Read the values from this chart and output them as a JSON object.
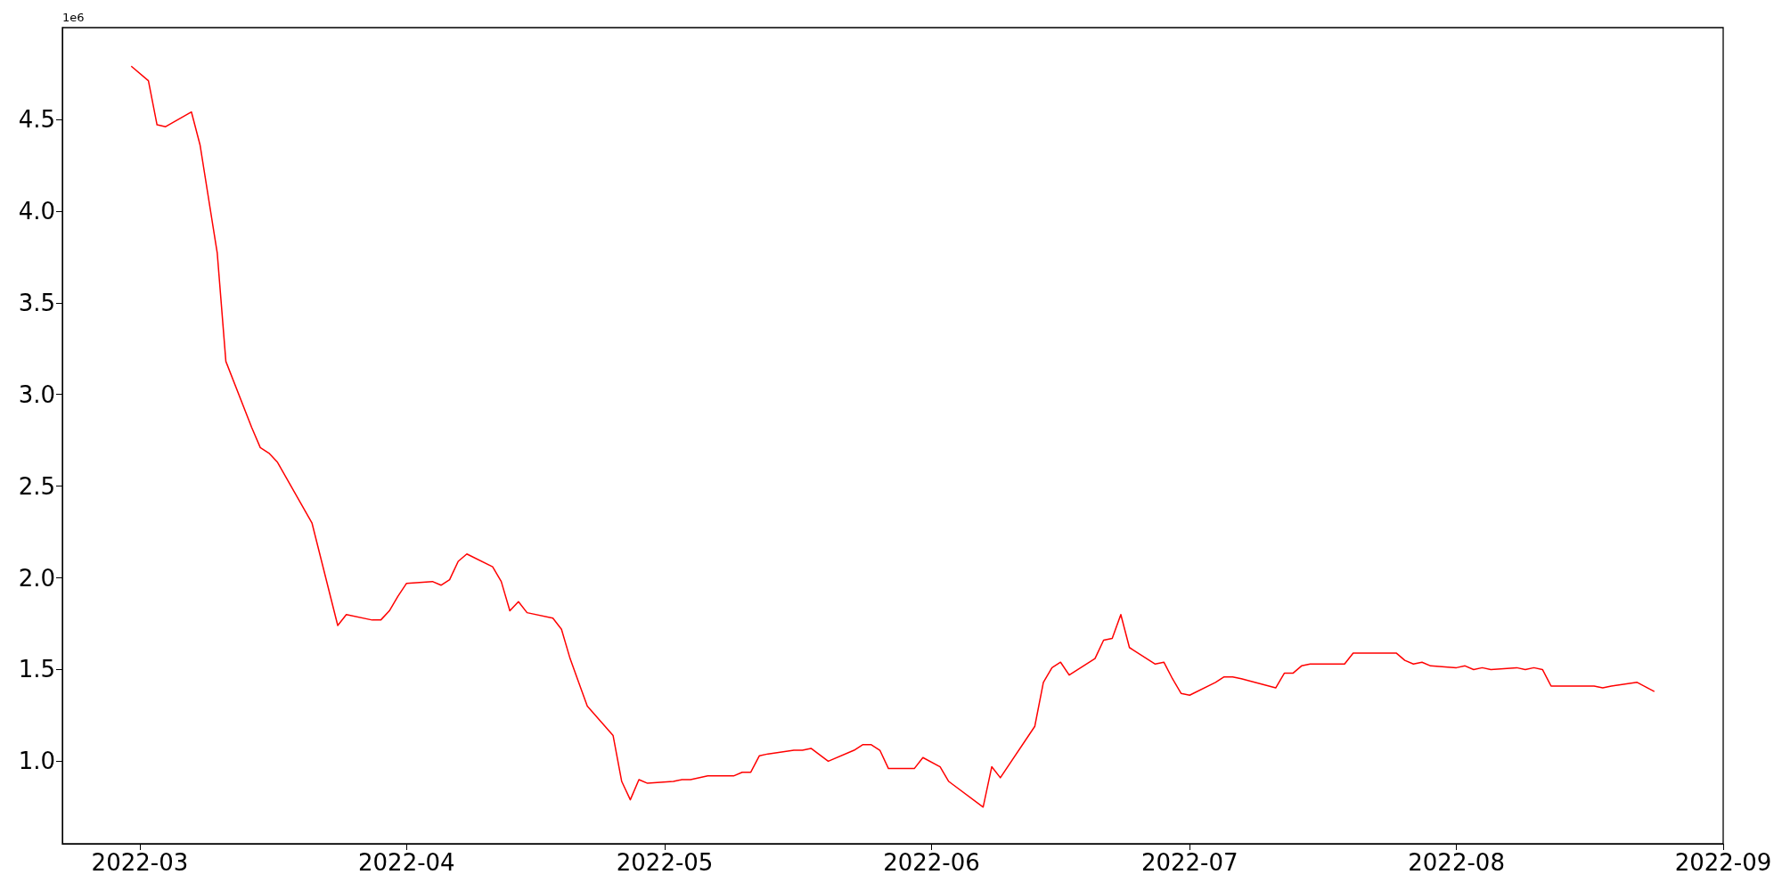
{
  "chart_data": {
    "type": "line",
    "annotations": [
      "1e6"
    ],
    "xlim": [
      "2022-02-20",
      "2022-09-01"
    ],
    "ylim": [
      0.55,
      5.0
    ],
    "xticks": [
      "2022-03",
      "2022-04",
      "2022-05",
      "2022-06",
      "2022-07",
      "2022-08",
      "2022-09"
    ],
    "yticks": [
      {
        "value": 1,
        "label": "1.0"
      },
      1.5,
      {
        "value": 2,
        "label": "2.0"
      },
      2.5,
      {
        "value": 3,
        "label": "3.0"
      },
      3.5,
      {
        "value": 4,
        "label": "4.0"
      },
      4.5
    ],
    "grid": false,
    "marker": "none",
    "line_style": "solid",
    "series": [
      {
        "color": "#ff0000",
        "x": [
          "2022-02-28",
          "2022-03-02",
          "2022-03-03",
          "2022-03-04",
          "2022-03-07",
          "2022-03-08",
          "2022-03-10",
          "2022-03-11",
          "2022-03-14",
          "2022-03-15",
          "2022-03-16",
          "2022-03-17",
          "2022-03-21",
          "2022-03-24",
          "2022-03-25",
          "2022-03-28",
          "2022-03-29",
          "2022-03-30",
          "2022-03-31",
          "2022-04-01",
          "2022-04-04",
          "2022-04-05",
          "2022-04-06",
          "2022-04-07",
          "2022-04-08",
          "2022-04-11",
          "2022-04-12",
          "2022-04-13",
          "2022-04-14",
          "2022-04-15",
          "2022-04-18",
          "2022-04-19",
          "2022-04-20",
          "2022-04-22",
          "2022-04-25",
          "2022-04-26",
          "2022-04-27",
          "2022-04-28",
          "2022-04-29",
          "2022-05-02",
          "2022-05-03",
          "2022-05-04",
          "2022-05-06",
          "2022-05-09",
          "2022-05-10",
          "2022-05-11",
          "2022-05-12",
          "2022-05-13",
          "2022-05-16",
          "2022-05-17",
          "2022-05-18",
          "2022-05-20",
          "2022-05-23",
          "2022-05-24",
          "2022-05-25",
          "2022-05-26",
          "2022-05-27",
          "2022-05-30",
          "2022-05-31",
          "2022-06-02",
          "2022-06-03",
          "2022-06-07",
          "2022-06-08",
          "2022-06-09",
          "2022-06-13",
          "2022-06-14",
          "2022-06-15",
          "2022-06-16",
          "2022-06-17",
          "2022-06-20",
          "2022-06-21",
          "2022-06-22",
          "2022-06-23",
          "2022-06-24",
          "2022-06-27",
          "2022-06-28",
          "2022-06-29",
          "2022-06-30",
          "2022-07-01",
          "2022-07-04",
          "2022-07-05",
          "2022-07-06",
          "2022-07-07",
          "2022-07-11",
          "2022-07-12",
          "2022-07-13",
          "2022-07-14",
          "2022-07-15",
          "2022-07-18",
          "2022-07-19",
          "2022-07-20",
          "2022-07-25",
          "2022-07-26",
          "2022-07-27",
          "2022-07-28",
          "2022-07-29",
          "2022-08-01",
          "2022-08-02",
          "2022-08-03",
          "2022-08-04",
          "2022-08-05",
          "2022-08-08",
          "2022-08-09",
          "2022-08-10",
          "2022-08-11",
          "2022-08-12",
          "2022-08-17",
          "2022-08-18",
          "2022-08-19",
          "2022-08-22",
          "2022-08-24"
        ],
        "values": [
          4.79,
          4.71,
          4.47,
          4.46,
          4.54,
          4.36,
          3.77,
          3.18,
          2.82,
          2.71,
          2.68,
          2.63,
          2.3,
          1.74,
          1.8,
          1.77,
          1.77,
          1.82,
          1.9,
          1.97,
          1.98,
          1.96,
          1.99,
          2.09,
          2.13,
          2.06,
          1.98,
          1.82,
          1.87,
          1.81,
          1.78,
          1.72,
          1.56,
          1.3,
          1.14,
          0.89,
          0.79,
          0.9,
          0.88,
          0.89,
          0.9,
          0.9,
          0.92,
          0.92,
          0.94,
          0.94,
          1.03,
          1.04,
          1.06,
          1.06,
          1.07,
          1.0,
          1.06,
          1.09,
          1.09,
          1.06,
          0.96,
          0.96,
          1.02,
          0.97,
          0.89,
          0.75,
          0.97,
          0.91,
          1.19,
          1.43,
          1.51,
          1.54,
          1.47,
          1.56,
          1.66,
          1.67,
          1.8,
          1.62,
          1.53,
          1.54,
          1.45,
          1.37,
          1.36,
          1.43,
          1.46,
          1.46,
          1.45,
          1.4,
          1.48,
          1.48,
          1.52,
          1.53,
          1.53,
          1.53,
          1.59,
          1.59,
          1.55,
          1.53,
          1.54,
          1.52,
          1.51,
          1.52,
          1.5,
          1.51,
          1.5,
          1.51,
          1.5,
          1.51,
          1.5,
          1.41,
          1.41,
          1.4,
          1.41,
          1.43,
          1.38
        ]
      }
    ]
  }
}
